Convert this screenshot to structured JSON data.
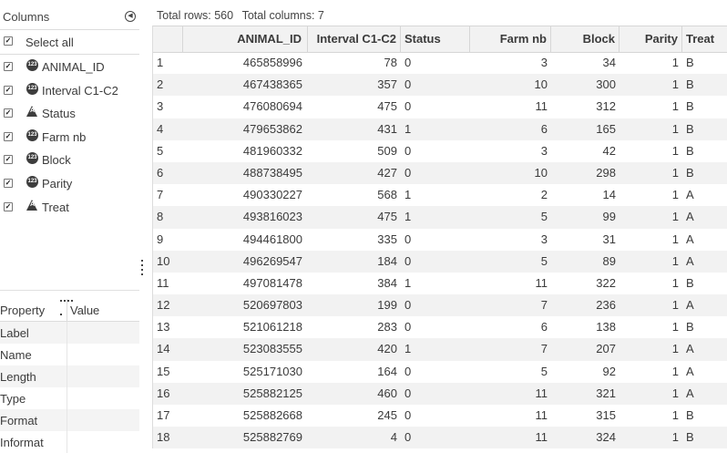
{
  "columns_panel": {
    "title": "Columns",
    "select_all_label": "Select all",
    "items": [
      {
        "label": "ANIMAL_ID",
        "type": "numeric",
        "badge": "123"
      },
      {
        "label": "Interval C1-C2",
        "type": "numeric",
        "badge": "123"
      },
      {
        "label": "Status",
        "type": "character",
        "badge": "A"
      },
      {
        "label": "Farm nb",
        "type": "numeric",
        "badge": "123"
      },
      {
        "label": "Block",
        "type": "numeric",
        "badge": "123"
      },
      {
        "label": "Parity",
        "type": "numeric",
        "badge": "123"
      },
      {
        "label": "Treat",
        "type": "character",
        "badge": "A"
      }
    ]
  },
  "property_panel": {
    "headers": {
      "property": "Property",
      "value": "Value"
    },
    "rows": [
      "Label",
      "Name",
      "Length",
      "Type",
      "Format",
      "Informat"
    ]
  },
  "summary": {
    "total_rows": "Total rows: 560",
    "total_columns": "Total columns: 7"
  },
  "table": {
    "headers": [
      "",
      "ANIMAL_ID",
      "Interval C1-C2",
      "Status",
      "Farm nb",
      "Block",
      "Parity",
      "Treat"
    ],
    "rows": [
      [
        "1",
        "465858996",
        "78",
        "0",
        "3",
        "34",
        "1",
        "B"
      ],
      [
        "2",
        "467438365",
        "357",
        "0",
        "10",
        "300",
        "1",
        "B"
      ],
      [
        "3",
        "476080694",
        "475",
        "0",
        "11",
        "312",
        "1",
        "B"
      ],
      [
        "4",
        "479653862",
        "431",
        "1",
        "6",
        "165",
        "1",
        "B"
      ],
      [
        "5",
        "481960332",
        "509",
        "0",
        "3",
        "42",
        "1",
        "B"
      ],
      [
        "6",
        "488738495",
        "427",
        "0",
        "10",
        "298",
        "1",
        "B"
      ],
      [
        "7",
        "490330227",
        "568",
        "1",
        "2",
        "14",
        "1",
        "A"
      ],
      [
        "8",
        "493816023",
        "475",
        "1",
        "5",
        "99",
        "1",
        "A"
      ],
      [
        "9",
        "494461800",
        "335",
        "0",
        "3",
        "31",
        "1",
        "A"
      ],
      [
        "10",
        "496269547",
        "184",
        "0",
        "5",
        "89",
        "1",
        "A"
      ],
      [
        "11",
        "497081478",
        "384",
        "1",
        "11",
        "322",
        "1",
        "B"
      ],
      [
        "12",
        "520697803",
        "199",
        "0",
        "7",
        "236",
        "1",
        "A"
      ],
      [
        "13",
        "521061218",
        "283",
        "0",
        "6",
        "138",
        "1",
        "B"
      ],
      [
        "14",
        "523083555",
        "420",
        "1",
        "7",
        "207",
        "1",
        "A"
      ],
      [
        "15",
        "525171030",
        "164",
        "0",
        "5",
        "92",
        "1",
        "A"
      ],
      [
        "16",
        "525882125",
        "460",
        "0",
        "11",
        "321",
        "1",
        "A"
      ],
      [
        "17",
        "525882668",
        "245",
        "0",
        "11",
        "315",
        "1",
        "B"
      ],
      [
        "18",
        "525882769",
        "4",
        "0",
        "11",
        "324",
        "1",
        "B"
      ]
    ]
  },
  "colors": {
    "header_bg": "#f2f2f2",
    "alt_row_bg": "#f2f2f2",
    "border": "#d6d6d6",
    "icon_dark": "#3d3d3d"
  }
}
